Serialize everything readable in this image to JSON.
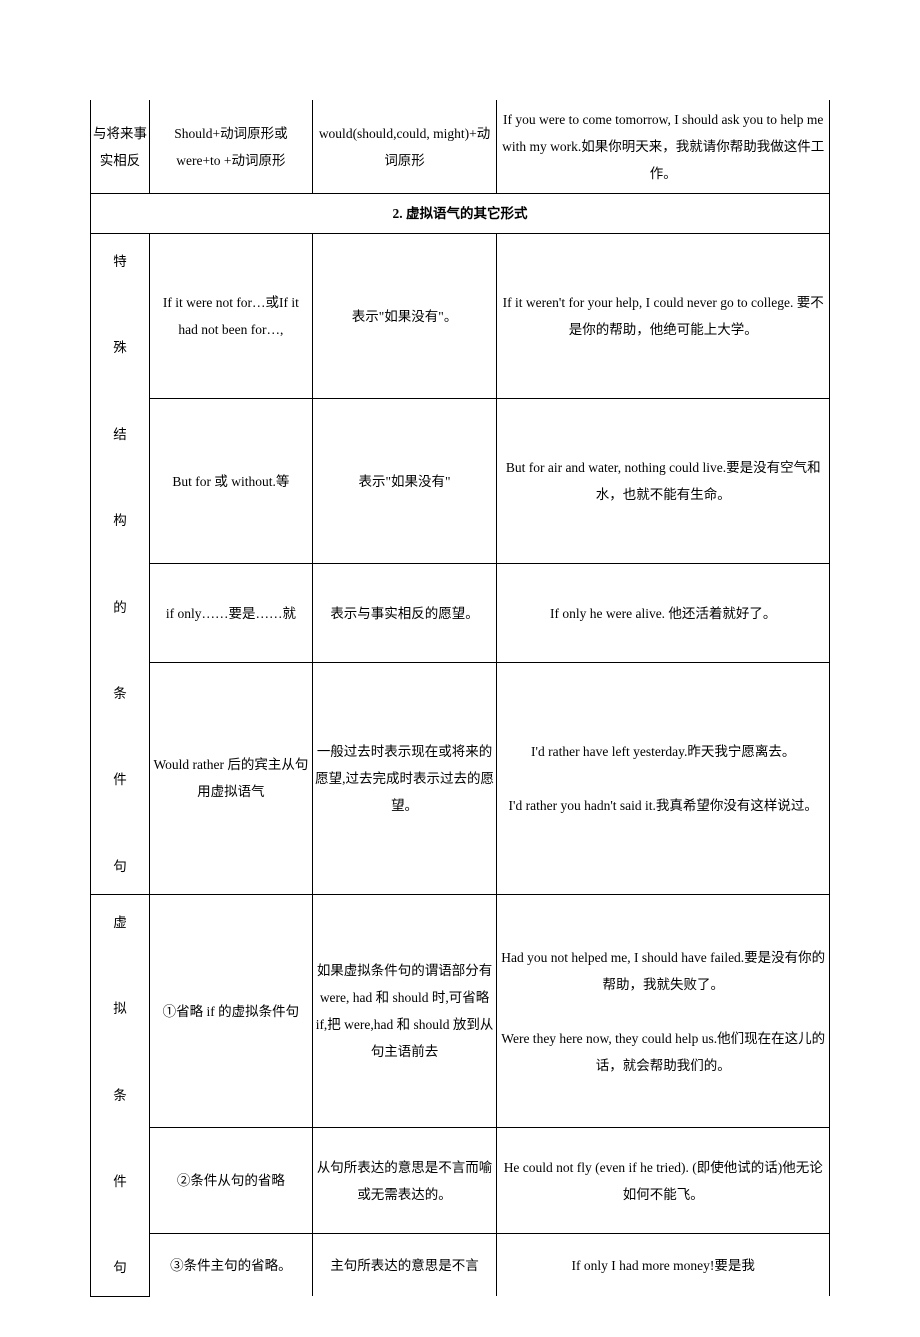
{
  "row1": {
    "c1": "与将来事实相反",
    "c2": "Should+动词原形或were+to +动词原形",
    "c3": "would(should,could, might)+动词原形",
    "c4": "If you were to come tomorrow, I should ask you to help me with my work.如果你明天来，我就请你帮助我做这件工作。"
  },
  "section2_header": "2. 虚拟语气的其它形式",
  "group1_label": "特\n\n殊\n\n结\n\n构\n\n的\n\n条\n\n件\n\n句",
  "r2": {
    "c2": "If it were not for…或If it had not been for…,",
    "c3": "表示\"如果没有\"。",
    "c4": "If it weren't for your help, I could never go to college. 要不是你的帮助，他绝可能上大学。"
  },
  "r3": {
    "c2": "But for 或 without.等",
    "c3": "表示\"如果没有\"",
    "c4": "But for air and water, nothing could live.要是没有空气和水，也就不能有生命。"
  },
  "r4": {
    "c2": "if only……要是……就",
    "c3": "表示与事实相反的愿望。",
    "c4": "If only he were alive. 他还活着就好了。"
  },
  "r5": {
    "c2": "Would rather 后的宾主从句用虚拟语气",
    "c3": "一般过去时表示现在或将来的愿望,过去完成时表示过去的愿望。",
    "c4": "I'd rather have left yesterday.昨天我宁愿离去。\n\nI'd rather you hadn't said it.我真希望你没有这样说过。"
  },
  "group2_label": "虚\n\n拟\n\n条\n\n件\n\n句",
  "r6": {
    "c2": "①省略 if 的虚拟条件句",
    "c3": "如果虚拟条件句的谓语部分有 were, had 和 should 时,可省略 if,把 were,had 和 should 放到从句主语前去",
    "c4": "Had you not helped me, I should have failed.要是没有你的帮助，我就失败了。\n\nWere they here now, they could help us.他们现在在这儿的话，就会帮助我们的。"
  },
  "r7": {
    "c2": "②条件从句的省略",
    "c3": "从句所表达的意思是不言而喻或无需表达的。",
    "c4": "He could not fly (even if he tried). (即使他试的话)他无论如何不能飞。"
  },
  "r8": {
    "c2": "③条件主句的省略。",
    "c3": "主句所表达的意思是不言",
    "c4": "If only I had more money!要是我"
  }
}
